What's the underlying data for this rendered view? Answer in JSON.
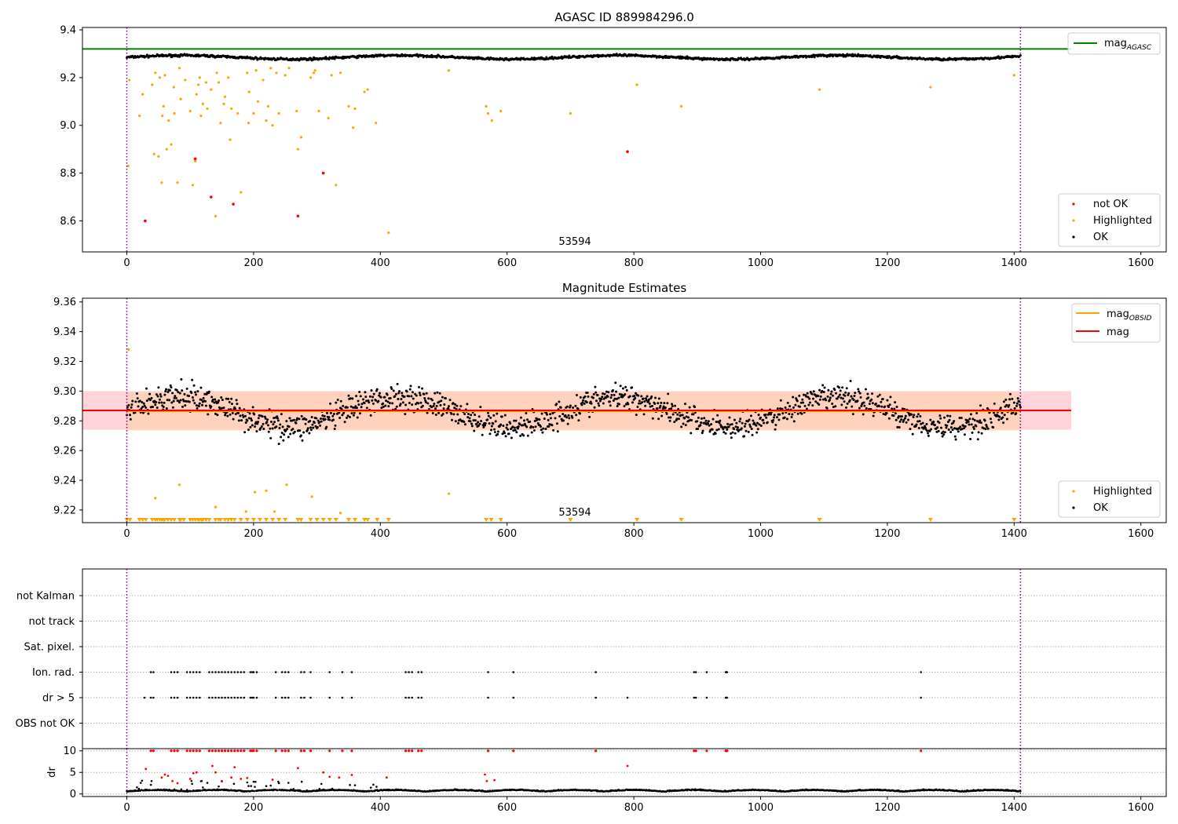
{
  "chart_data": [
    {
      "type": "scatter",
      "title": "AGASC ID 889984296.0",
      "xlabel": "",
      "ylabel": "",
      "xlim": [
        -70,
        1640
      ],
      "ylim": [
        8.47,
        9.41
      ],
      "x_ticks": [
        0,
        200,
        400,
        600,
        800,
        1000,
        1200,
        1400,
        1600
      ],
      "y_ticks": [
        8.6,
        8.8,
        9.0,
        9.2,
        9.4
      ],
      "y_tick_labels": [
        "8.6",
        "8.8",
        "9.0",
        "9.2",
        "9.4"
      ],
      "obsid_bounds": [
        0,
        1410
      ],
      "obsid_label": "53594",
      "lines": [
        {
          "name": "mag_AGASC",
          "y": 9.32,
          "x_range": [
            -70,
            1490
          ],
          "color": "#008000"
        }
      ],
      "ok_band": {
        "min": 9.255,
        "max": 9.315
      },
      "ok_wave": {
        "mean": 9.285,
        "amp": 0.008,
        "noise": 0.006
      },
      "highlighted": [
        [
          2,
          8.83
        ],
        [
          4,
          9.19
        ],
        [
          20,
          9.04
        ],
        [
          25,
          9.13
        ],
        [
          40,
          9.17
        ],
        [
          43,
          8.88
        ],
        [
          45,
          9.22
        ],
        [
          50,
          8.87
        ],
        [
          52,
          9.2
        ],
        [
          55,
          8.76
        ],
        [
          56,
          9.04
        ],
        [
          58,
          9.08
        ],
        [
          60,
          9.21
        ],
        [
          63,
          8.9
        ],
        [
          66,
          9.02
        ],
        [
          70,
          8.92
        ],
        [
          74,
          9.16
        ],
        [
          75,
          9.05
        ],
        [
          80,
          8.76
        ],
        [
          83,
          9.24
        ],
        [
          85,
          9.11
        ],
        [
          92,
          9.19
        ],
        [
          100,
          9.06
        ],
        [
          104,
          8.75
        ],
        [
          108,
          8.85
        ],
        [
          110,
          9.13
        ],
        [
          113,
          9.17
        ],
        [
          115,
          9.2
        ],
        [
          117,
          9.04
        ],
        [
          120,
          9.09
        ],
        [
          125,
          9.18
        ],
        [
          127,
          9.07
        ],
        [
          133,
          9.15
        ],
        [
          140,
          8.62
        ],
        [
          142,
          9.22
        ],
        [
          145,
          9.18
        ],
        [
          148,
          9.01
        ],
        [
          153,
          9.09
        ],
        [
          155,
          9.12
        ],
        [
          160,
          9.2
        ],
        [
          163,
          8.94
        ],
        [
          165,
          9.07
        ],
        [
          175,
          9.05
        ],
        [
          180,
          8.72
        ],
        [
          190,
          9.22
        ],
        [
          192,
          9.01
        ],
        [
          193,
          9.14
        ],
        [
          200,
          9.05
        ],
        [
          204,
          9.23
        ],
        [
          207,
          9.1
        ],
        [
          215,
          9.19
        ],
        [
          220,
          9.02
        ],
        [
          223,
          9.08
        ],
        [
          227,
          9.24
        ],
        [
          230,
          9.0
        ],
        [
          236,
          9.22
        ],
        [
          240,
          9.05
        ],
        [
          250,
          9.21
        ],
        [
          256,
          9.24
        ],
        [
          268,
          9.06
        ],
        [
          270,
          8.9
        ],
        [
          275,
          8.95
        ],
        [
          290,
          9.2
        ],
        [
          295,
          9.22
        ],
        [
          297,
          9.23
        ],
        [
          303,
          9.06
        ],
        [
          318,
          9.03
        ],
        [
          323,
          9.21
        ],
        [
          330,
          8.75
        ],
        [
          337,
          9.22
        ],
        [
          350,
          9.08
        ],
        [
          357,
          8.99
        ],
        [
          360,
          9.07
        ],
        [
          375,
          9.14
        ],
        [
          380,
          9.15
        ],
        [
          393,
          9.01
        ],
        [
          413,
          8.55
        ],
        [
          508,
          9.23
        ],
        [
          567,
          9.08
        ],
        [
          570,
          9.05
        ],
        [
          576,
          9.02
        ],
        [
          590,
          9.06
        ],
        [
          700,
          9.05
        ],
        [
          805,
          9.17
        ],
        [
          875,
          9.08
        ],
        [
          1093,
          9.15
        ],
        [
          1268,
          9.16
        ],
        [
          1400,
          9.21
        ]
      ],
      "not_ok": [
        [
          29,
          8.6
        ],
        [
          108,
          8.86
        ],
        [
          133,
          8.7
        ],
        [
          168,
          8.67
        ],
        [
          270,
          8.62
        ],
        [
          310,
          8.8
        ],
        [
          790,
          8.89
        ]
      ],
      "legends": [
        [
          "mag_AGASC"
        ],
        [
          "not OK",
          "Highlighted",
          "OK"
        ]
      ],
      "legend_placement": [
        "top-right",
        "bottom-right"
      ]
    },
    {
      "type": "scatter",
      "title": "Magnitude Estimates",
      "xlabel": "",
      "ylabel": "",
      "xlim": [
        -70,
        1640
      ],
      "ylim": [
        9.2115,
        9.3625
      ],
      "x_ticks": [
        0,
        200,
        400,
        600,
        800,
        1000,
        1200,
        1400,
        1600
      ],
      "y_ticks": [
        9.22,
        9.24,
        9.26,
        9.28,
        9.3,
        9.32,
        9.34,
        9.36
      ],
      "y_tick_labels": [
        "9.22",
        "9.24",
        "9.26",
        "9.28",
        "9.30",
        "9.32",
        "9.34",
        "9.36"
      ],
      "obsid_bounds": [
        0,
        1410
      ],
      "obsid_label": "53594",
      "lines": [
        {
          "name": "mag_OBSID",
          "y": 9.2865,
          "x_range": [
            0,
            1410
          ],
          "color": "#ffa500"
        },
        {
          "name": "mag",
          "y": 9.287,
          "x_range": [
            -70,
            1490
          ],
          "color": "#ff0000"
        }
      ],
      "bands": [
        {
          "ymin": 9.274,
          "ymax": 9.3,
          "x_range": [
            -70,
            1490
          ],
          "color": "#ffc0cb"
        },
        {
          "ymin": 9.2735,
          "ymax": 9.2995,
          "x_range": [
            0,
            1410
          ],
          "color": "#ffd1b0"
        }
      ],
      "ok_band": {
        "min": 9.25,
        "max": 9.32
      },
      "ok_wave": {
        "mean": 9.286,
        "amp": 0.01,
        "noise": 0.011
      },
      "highlighted": [
        [
          3,
          9.328
        ],
        [
          45,
          9.228
        ],
        [
          83,
          9.237
        ],
        [
          140,
          9.222
        ],
        [
          188,
          9.219
        ],
        [
          202,
          9.232
        ],
        [
          220,
          9.233
        ],
        [
          233,
          9.219
        ],
        [
          252,
          9.237
        ],
        [
          292,
          9.229
        ],
        [
          337,
          9.218
        ],
        [
          508,
          9.231
        ]
      ],
      "highlighted_low_x": [
        0,
        5,
        20,
        25,
        30,
        40,
        45,
        48,
        52,
        55,
        58,
        60,
        65,
        70,
        75,
        83,
        85,
        90,
        100,
        104,
        108,
        112,
        115,
        118,
        120,
        125,
        130,
        140,
        145,
        148,
        155,
        160,
        165,
        170,
        180,
        190,
        200,
        210,
        220,
        230,
        240,
        250,
        270,
        275,
        290,
        300,
        310,
        320,
        330,
        350,
        360,
        375,
        380,
        395,
        413,
        567,
        575,
        590,
        700,
        805,
        875,
        1093,
        1268,
        1400
      ],
      "legends": [
        [
          "mag_OBSID",
          "mag"
        ],
        [
          "Highlighted",
          "OK"
        ]
      ],
      "legend_placement": [
        "top-right",
        "bottom-right"
      ]
    },
    {
      "type": "scatter",
      "xlim": [
        -70,
        1640
      ],
      "categories": [
        "not Kalman",
        "not track",
        "Sat. pixel.",
        "Ion. rad.",
        "dr > 5",
        "OBS not OK"
      ],
      "flag_points": {
        "Ion. rad.": [
          38,
          42,
          70,
          75,
          80,
          95,
          100,
          105,
          110,
          115,
          130,
          135,
          140,
          145,
          150,
          155,
          160,
          165,
          170,
          175,
          180,
          185,
          195,
          198,
          200,
          205,
          235,
          245,
          250,
          255,
          275,
          280,
          290,
          320,
          340,
          355,
          440,
          445,
          450,
          460,
          465,
          570,
          610,
          740,
          895,
          898,
          915,
          945,
          946,
          947,
          1253
        ],
        "dr > 5": [
          28,
          38,
          42,
          70,
          75,
          80,
          95,
          100,
          105,
          110,
          115,
          130,
          135,
          140,
          145,
          150,
          155,
          160,
          165,
          170,
          175,
          180,
          185,
          195,
          198,
          200,
          205,
          235,
          245,
          250,
          255,
          275,
          280,
          290,
          320,
          340,
          355,
          440,
          445,
          450,
          460,
          465,
          570,
          610,
          740,
          790,
          895,
          898,
          915,
          945,
          946,
          947,
          1253
        ]
      },
      "x_ticks": [
        0,
        200,
        400,
        600,
        800,
        1000,
        1200,
        1400,
        1600
      ],
      "obsid_bounds": [
        0,
        1410
      ]
    },
    {
      "type": "scatter",
      "ylabel": "dr",
      "xlim": [
        -70,
        1640
      ],
      "ylim": [
        -0.6,
        10.5
      ],
      "y_ticks": [
        0,
        5,
        10
      ],
      "x_ticks": [
        0,
        200,
        400,
        600,
        800,
        1000,
        1200,
        1400,
        1600
      ],
      "obsid_bounds": [
        0,
        1410
      ],
      "red_high_x": [
        38,
        42,
        70,
        75,
        80,
        95,
        100,
        105,
        110,
        115,
        130,
        135,
        140,
        145,
        150,
        155,
        160,
        165,
        170,
        175,
        180,
        185,
        195,
        198,
        200,
        205,
        235,
        245,
        250,
        255,
        275,
        280,
        290,
        320,
        340,
        355,
        440,
        445,
        450,
        460,
        465,
        570,
        610,
        740,
        895,
        898,
        915,
        945,
        946,
        947,
        1253
      ],
      "red_mid": [
        [
          30,
          5.8
        ],
        [
          55,
          3.8
        ],
        [
          60,
          4.5
        ],
        [
          65,
          4.2
        ],
        [
          72,
          3.0
        ],
        [
          80,
          2.5
        ],
        [
          100,
          3.5
        ],
        [
          105,
          4.8
        ],
        [
          110,
          5.0
        ],
        [
          135,
          6.5
        ],
        [
          140,
          5.0
        ],
        [
          150,
          3.0
        ],
        [
          165,
          3.8
        ],
        [
          170,
          6.2
        ],
        [
          180,
          3.5
        ],
        [
          190,
          3.7
        ],
        [
          230,
          3.3
        ],
        [
          270,
          6.0
        ],
        [
          310,
          5.0
        ],
        [
          320,
          4.0
        ],
        [
          335,
          3.8
        ],
        [
          355,
          4.4
        ],
        [
          410,
          3.8
        ],
        [
          565,
          4.5
        ],
        [
          568,
          3.0
        ],
        [
          580,
          3.2
        ],
        [
          790,
          6.5
        ]
      ]
    }
  ]
}
